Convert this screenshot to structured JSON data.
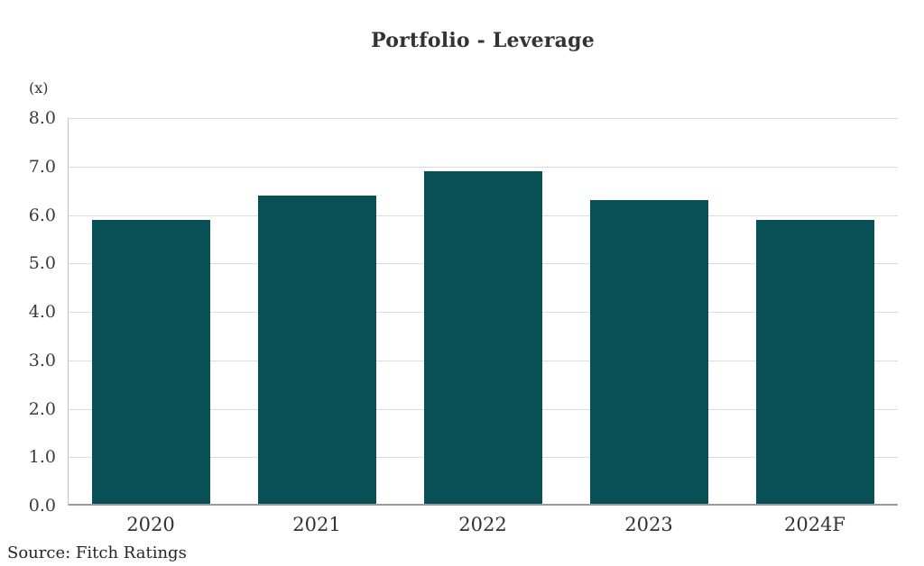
{
  "title": "Portfolio - Leverage",
  "unit_label": "(x)",
  "source": "Source: Fitch Ratings",
  "colors": {
    "bar": "#085056",
    "gridline": "#dcdcdc",
    "baseline": "#9b9b9b",
    "axis_line": "#c4c4c4",
    "text": "#333333"
  },
  "chart_data": {
    "type": "bar",
    "title": "Portfolio - Leverage",
    "xlabel": "",
    "ylabel": "(x)",
    "categories": [
      "2020",
      "2021",
      "2022",
      "2023",
      "2024F"
    ],
    "values": [
      5.9,
      6.4,
      6.9,
      6.3,
      5.9
    ],
    "ylim": [
      0,
      8
    ],
    "yticks": [
      {
        "value": 8,
        "label": "8.0"
      },
      {
        "value": 7,
        "label": "7.0"
      },
      {
        "value": 6,
        "label": "6.0"
      },
      {
        "value": 5,
        "label": "5.0"
      },
      {
        "value": 4,
        "label": "4.0"
      },
      {
        "value": 3,
        "label": "3.0"
      },
      {
        "value": 2,
        "label": "2.0"
      },
      {
        "value": 1,
        "label": "1.0"
      },
      {
        "value": 0,
        "label": "0.0"
      }
    ],
    "grid": true,
    "legend": false
  }
}
